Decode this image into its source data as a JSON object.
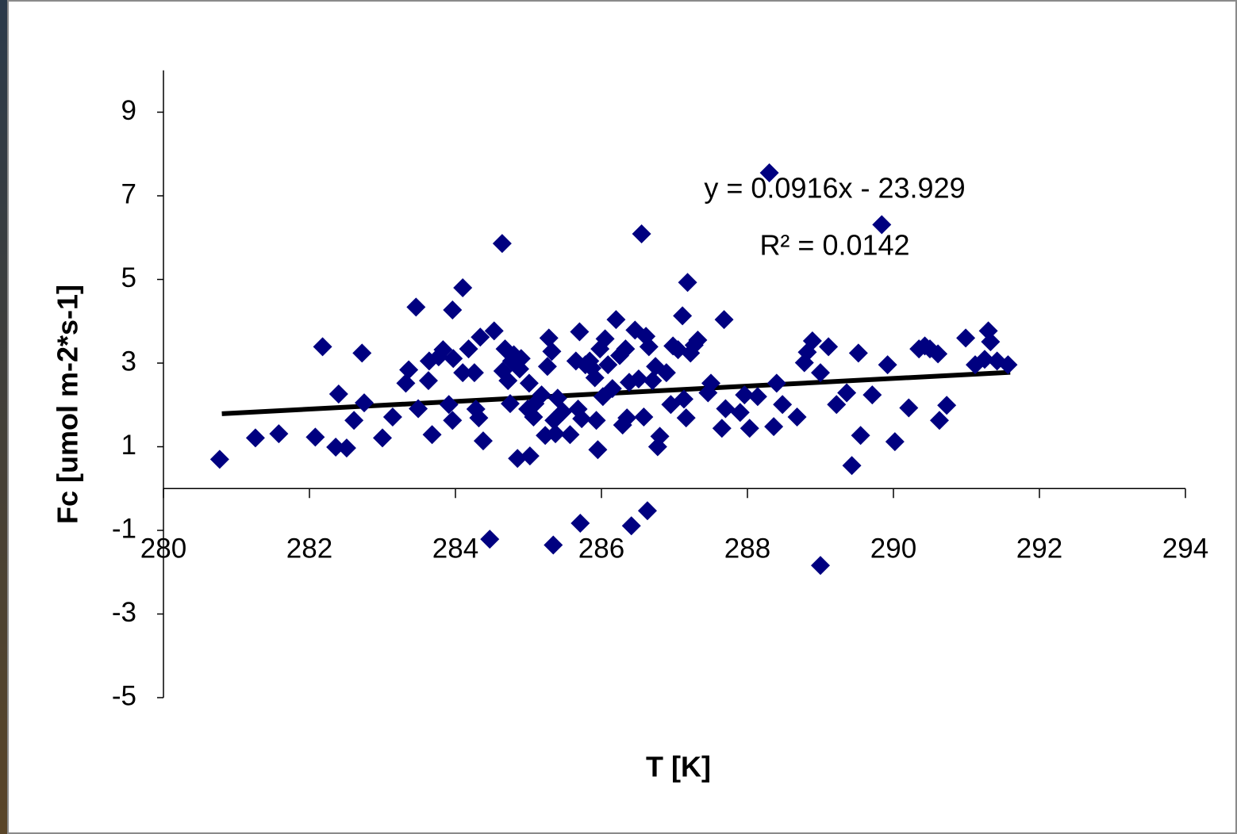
{
  "chart_data": {
    "type": "scatter",
    "x_label": "T [K]",
    "y_label": "Fc [umol m-2*s-1]",
    "annotations": [
      "y = 0.0916x - 23.929",
      "R² = 0.0142"
    ],
    "xlim": [
      280,
      294
    ],
    "xticks": [
      280,
      282,
      284,
      286,
      288,
      290,
      292,
      294
    ],
    "ylim": [
      -5,
      10
    ],
    "yticks": [
      -5,
      -3,
      -1,
      1,
      3,
      5,
      7,
      9
    ],
    "series": [
      {
        "color": "#000080",
        "marker": "diamond",
        "x": [
          280.77,
          281.26,
          281.58,
          282.08,
          282.18,
          282.36,
          282.4,
          282.51,
          282.61,
          282.72,
          282.75,
          283.0,
          283.14,
          283.32,
          283.36,
          283.46,
          283.49,
          283.63,
          283.64,
          283.68,
          283.77,
          283.83,
          283.91,
          283.96,
          283.96,
          283.97,
          284.1,
          284.1,
          284.18,
          284.26,
          284.28,
          284.32,
          284.34,
          284.38,
          284.47,
          284.53,
          284.64,
          284.65,
          284.68,
          284.72,
          284.75,
          284.77,
          284.8,
          284.85,
          284.88,
          284.9,
          284.99,
          285.01,
          285.02,
          285.07,
          285.09,
          285.18,
          285.23,
          285.26,
          285.28,
          285.32,
          285.34,
          285.35,
          285.37,
          285.4,
          285.47,
          285.57,
          285.65,
          285.68,
          285.7,
          285.71,
          285.73,
          285.78,
          285.84,
          285.87,
          285.91,
          285.93,
          285.95,
          285.98,
          286.02,
          286.05,
          286.09,
          286.15,
          286.2,
          286.25,
          286.29,
          286.33,
          286.35,
          286.38,
          286.41,
          286.46,
          286.51,
          286.55,
          286.58,
          286.61,
          286.63,
          286.65,
          286.7,
          286.74,
          286.77,
          286.8,
          286.89,
          286.95,
          286.98,
          287.05,
          287.11,
          287.13,
          287.16,
          287.18,
          287.22,
          287.27,
          287.32,
          287.46,
          287.5,
          287.65,
          287.68,
          287.7,
          287.9,
          287.96,
          288.03,
          288.14,
          288.3,
          288.36,
          288.4,
          288.48,
          288.68,
          288.78,
          288.82,
          288.89,
          289.0,
          289.0,
          289.11,
          289.22,
          289.36,
          289.43,
          289.52,
          289.55,
          289.71,
          289.84,
          289.92,
          290.02,
          290.21,
          290.35,
          290.43,
          290.5,
          290.61,
          290.63,
          290.73,
          290.99,
          291.12,
          291.25,
          291.3,
          291.33,
          291.42,
          291.57
        ],
        "values": [
          0.7,
          1.21,
          1.31,
          1.23,
          3.39,
          0.99,
          2.26,
          0.97,
          1.63,
          3.24,
          2.05,
          1.21,
          1.71,
          2.52,
          2.84,
          4.34,
          1.91,
          2.58,
          3.05,
          1.29,
          3.15,
          3.32,
          2.01,
          4.27,
          1.63,
          3.11,
          4.8,
          2.77,
          3.34,
          2.77,
          1.9,
          1.69,
          3.62,
          1.14,
          -1.21,
          3.77,
          5.86,
          2.81,
          3.34,
          2.58,
          2.03,
          3.05,
          3.2,
          0.72,
          2.86,
          3.11,
          1.9,
          2.52,
          0.78,
          1.71,
          2.03,
          2.24,
          1.27,
          2.92,
          3.6,
          3.28,
          -1.35,
          1.63,
          1.31,
          2.16,
          1.84,
          1.29,
          3.05,
          1.9,
          3.75,
          -0.83,
          1.67,
          2.96,
          3.05,
          2.88,
          2.65,
          1.63,
          0.93,
          3.34,
          2.2,
          3.58,
          2.96,
          2.39,
          4.04,
          3.18,
          1.52,
          3.34,
          1.69,
          2.54,
          -0.89,
          3.79,
          2.62,
          6.09,
          1.71,
          3.64,
          -0.53,
          3.39,
          2.58,
          2.92,
          1.0,
          1.25,
          2.77,
          2.01,
          3.41,
          3.32,
          4.13,
          2.14,
          1.69,
          4.93,
          3.24,
          3.43,
          3.55,
          2.29,
          2.52,
          1.44,
          4.04,
          1.91,
          1.82,
          2.24,
          1.44,
          2.2,
          7.55,
          1.48,
          2.52,
          2.01,
          1.71,
          3.01,
          3.26,
          3.53,
          2.77,
          -1.84,
          3.39,
          2.01,
          2.29,
          0.55,
          3.24,
          1.27,
          2.24,
          6.31,
          2.96,
          1.12,
          1.93,
          3.34,
          3.41,
          3.34,
          3.22,
          1.63,
          1.99,
          3.6,
          2.96,
          3.09,
          3.77,
          3.51,
          3.05,
          2.96
        ]
      }
    ],
    "trendline": {
      "color": "#000000",
      "x": [
        280.8,
        291.6
      ],
      "values": [
        1.79,
        2.78
      ]
    }
  }
}
